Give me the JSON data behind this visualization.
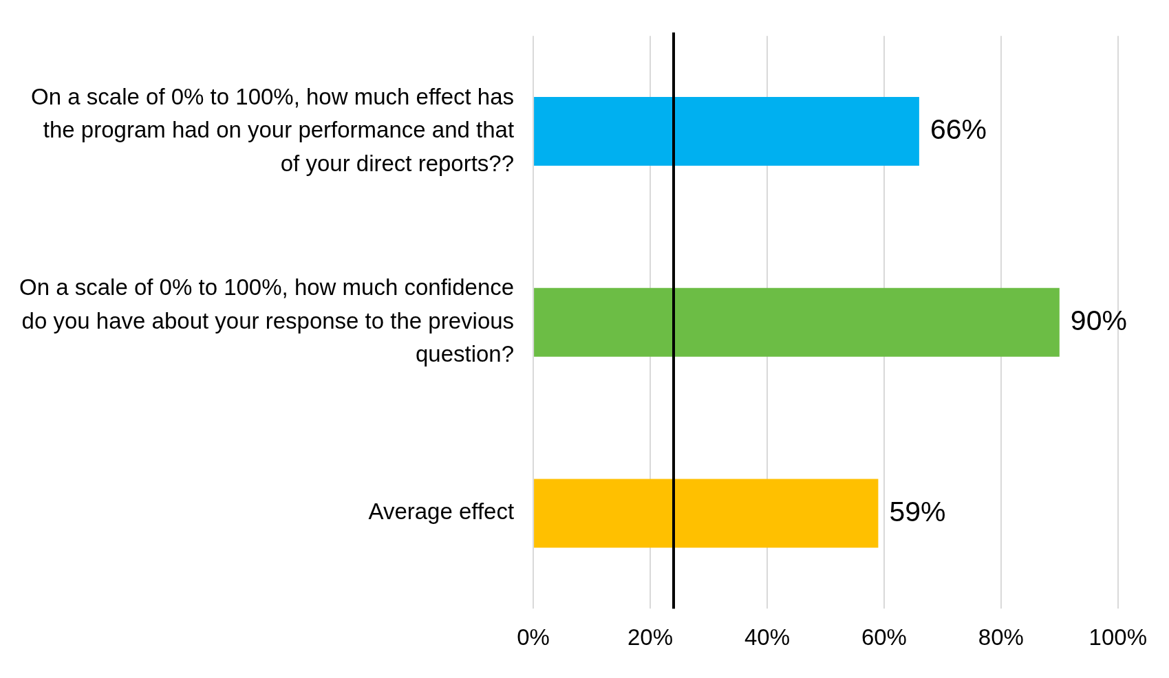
{
  "chart_data": {
    "type": "bar",
    "orientation": "horizontal",
    "categories": [
      "On a scale of 0% to 100%, how much effect has the program had on your performance and that of your direct reports??",
      "On a scale of 0% to 100%, how much confidence do you have about your response to the previous question?",
      "Average effect"
    ],
    "values": [
      66,
      90,
      59
    ],
    "colors": [
      "#00b0f0",
      "#6cbd45",
      "#ffc000"
    ],
    "value_labels": [
      "66%",
      "90%",
      "59%"
    ],
    "xlim": [
      0,
      100
    ],
    "xticks": [
      {
        "value": 0,
        "label": "0%"
      },
      {
        "value": 20,
        "label": "20%"
      },
      {
        "value": 40,
        "label": "40%"
      },
      {
        "value": 60,
        "label": "60%"
      },
      {
        "value": 80,
        "label": "80%"
      },
      {
        "value": 100,
        "label": "100%"
      }
    ],
    "ref_lines": [
      {
        "axis": "x",
        "value": 24,
        "color": "#000000"
      }
    ],
    "grid": "x",
    "legend": false
  }
}
